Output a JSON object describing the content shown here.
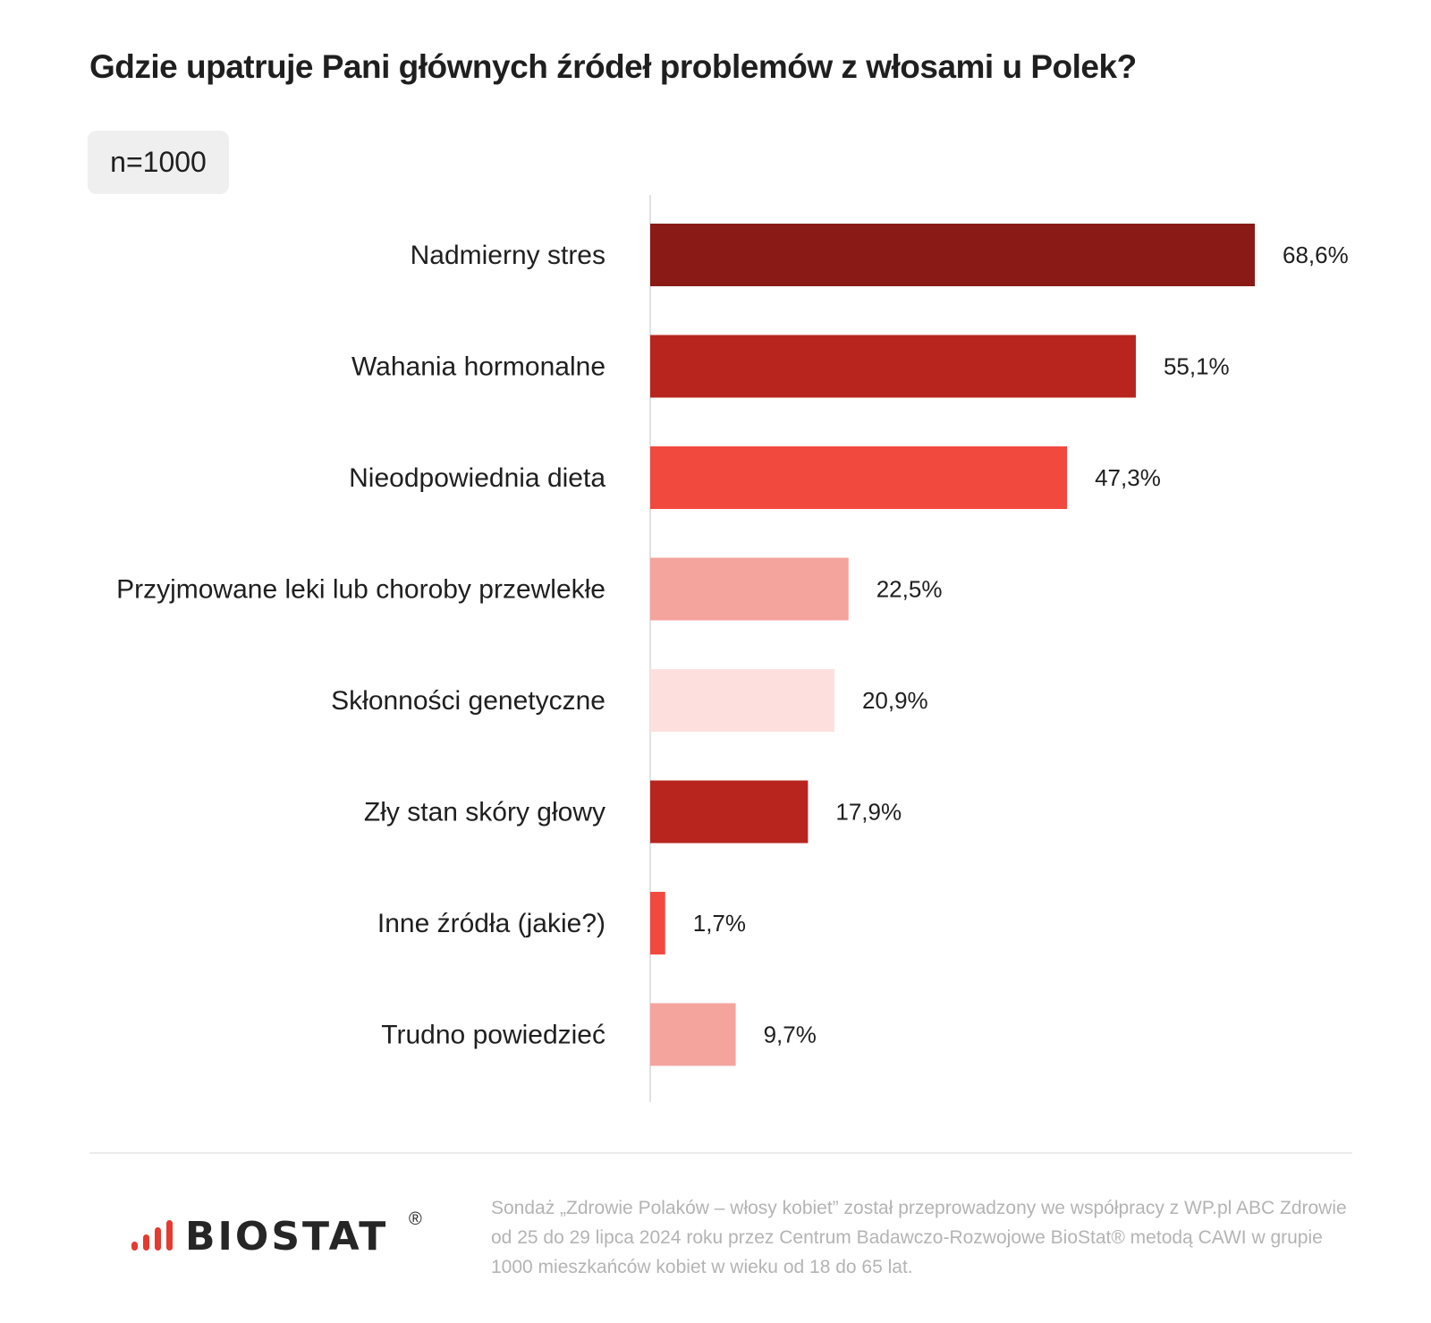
{
  "title": "Gdzie upatruje Pani głównych źródeł problemów z włosami u Polek?",
  "sample_badge": "n=1000",
  "chart_data": {
    "type": "bar",
    "orientation": "horizontal",
    "title": "Gdzie upatruje Pani głównych źródeł problemów z włosami u Polek?",
    "xlabel": "",
    "ylabel": "",
    "xlim": [
      0,
      68.6
    ],
    "grid": false,
    "legend": "none",
    "categories": [
      "Nadmierny stres",
      "Wahania hormonalne",
      "Nieodpowiednia dieta",
      "Przyjmowane leki lub choroby przewlekłe",
      "Skłonności genetyczne",
      "Zły stan skóry głowy",
      "Inne źródła (jakie?)",
      "Trudno powiedzieć"
    ],
    "values": [
      68.6,
      55.1,
      47.3,
      22.5,
      20.9,
      17.9,
      1.7,
      9.7
    ],
    "value_labels": [
      "68,6%",
      "55,1%",
      "47,3%",
      "22,5%",
      "20,9%",
      "17,9%",
      "1,7%",
      "9,7%"
    ],
    "colors": [
      "#8a1a16",
      "#b8251f",
      "#f2493f",
      "#f5a39d",
      "#fde0de",
      "#b8251f",
      "#f2493f",
      "#f5a39d"
    ]
  },
  "footer": {
    "logo": {
      "text": "BIOSTAT",
      "mark": "®",
      "icon": "signal-bars-icon",
      "accent": "#e53a30"
    },
    "note": "Sondaż „Zdrowie Polaków – włosy kobiet” został przeprowadzony we współpracy z WP.pl ABC Zdrowie od 25 do 29 lipca 2024 roku przez Centrum Badawczo-Rozwojowe BioStat® metodą CAWI w grupie 1000 mieszkańców kobiet w wieku od 18 do 65 lat."
  }
}
